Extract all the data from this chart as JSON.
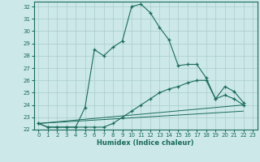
{
  "xlabel": "Humidex (Indice chaleur)",
  "ylabel": "",
  "bg_color": "#cce8e8",
  "grid_color": "#aacccc",
  "line_color": "#1a6b5a",
  "xlim": [
    -0.5,
    23.5
  ],
  "ylim": [
    22,
    32.4
  ],
  "yticks": [
    22,
    23,
    24,
    25,
    26,
    27,
    28,
    29,
    30,
    31,
    32
  ],
  "xticks": [
    0,
    1,
    2,
    3,
    4,
    5,
    6,
    7,
    8,
    9,
    10,
    11,
    12,
    13,
    14,
    15,
    16,
    17,
    18,
    19,
    20,
    21,
    22,
    23
  ],
  "line1_x": [
    0,
    1,
    2,
    3,
    4,
    5,
    6,
    7,
    8,
    9,
    10,
    11,
    12,
    13,
    14,
    15,
    16,
    17,
    18,
    19,
    20,
    21,
    22
  ],
  "line1_y": [
    22.5,
    22.2,
    22.2,
    22.2,
    22.2,
    23.8,
    28.5,
    28.0,
    28.7,
    29.2,
    32.0,
    32.2,
    31.5,
    30.3,
    29.3,
    27.2,
    27.3,
    27.3,
    26.2,
    24.5,
    25.5,
    25.1,
    24.2
  ],
  "line2_x": [
    0,
    1,
    2,
    3,
    4,
    5,
    6,
    7,
    8,
    9,
    10,
    11,
    12,
    13,
    14,
    15,
    16,
    17,
    18,
    19,
    20,
    21,
    22
  ],
  "line2_y": [
    22.5,
    22.2,
    22.2,
    22.2,
    22.2,
    22.2,
    22.2,
    22.2,
    22.5,
    23.0,
    23.5,
    24.0,
    24.5,
    25.0,
    25.3,
    25.5,
    25.8,
    26.0,
    26.0,
    24.5,
    24.8,
    24.5,
    24.0
  ],
  "line3_x": [
    0,
    22
  ],
  "line3_y": [
    22.5,
    24.0
  ],
  "line4_x": [
    0,
    22
  ],
  "line4_y": [
    22.5,
    23.5
  ]
}
